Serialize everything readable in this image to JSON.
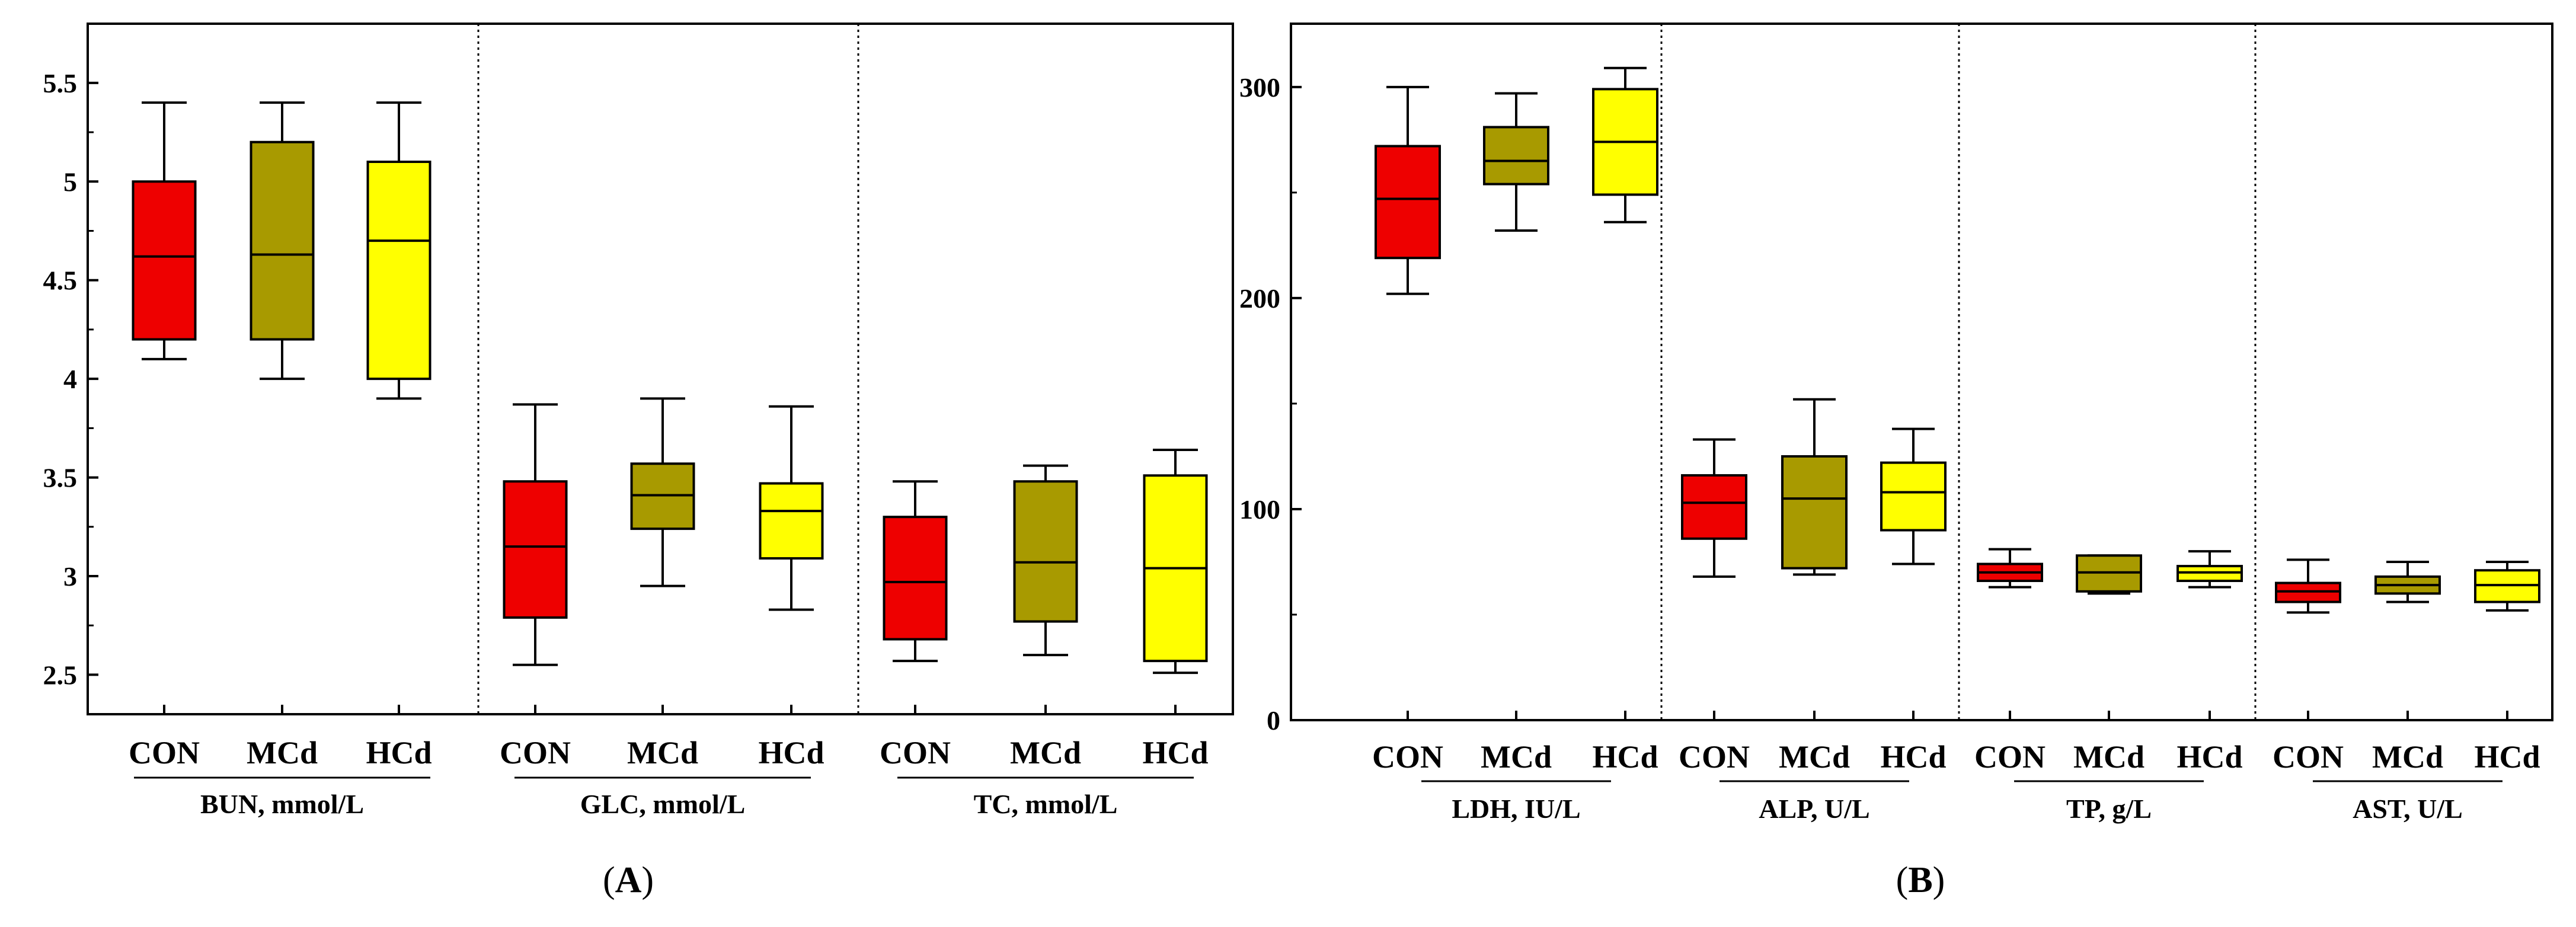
{
  "figure": {
    "panel_labels": [
      "A",
      "B"
    ]
  },
  "colors": {
    "CON": "#ee0000",
    "MCd": "#a89a00",
    "HCd": "#ffff00"
  },
  "chart_data": [
    {
      "type": "boxplot",
      "panel": "A",
      "ylim": [
        2.3,
        5.8
      ],
      "yticks": [
        2.5,
        3,
        3.5,
        4,
        4.5,
        5,
        5.5
      ],
      "ytick_labels": [
        "2.5",
        "3",
        "3.5",
        "4",
        "4.5",
        "5",
        "5.5"
      ],
      "groups": [
        {
          "param": "BUN, mmol/L",
          "boxes": [
            {
              "label": "CON",
              "min": 4.1,
              "q1": 4.2,
              "median": 4.62,
              "q3": 5.0,
              "max": 5.4
            },
            {
              "label": "MCd",
              "min": 4.0,
              "q1": 4.2,
              "median": 4.63,
              "q3": 5.2,
              "max": 5.4
            },
            {
              "label": "HCd",
              "min": 3.9,
              "q1": 4.0,
              "median": 4.7,
              "q3": 5.1,
              "max": 5.4
            }
          ]
        },
        {
          "param": "GLC, mmol/L",
          "boxes": [
            {
              "label": "CON",
              "min": 2.55,
              "q1": 2.79,
              "median": 3.15,
              "q3": 3.48,
              "max": 3.87
            },
            {
              "label": "MCd",
              "min": 2.95,
              "q1": 3.24,
              "median": 3.41,
              "q3": 3.57,
              "max": 3.9
            },
            {
              "label": "HCd",
              "min": 2.83,
              "q1": 3.09,
              "median": 3.33,
              "q3": 3.47,
              "max": 3.86
            }
          ]
        },
        {
          "param": "TC, mmol/L",
          "boxes": [
            {
              "label": "CON",
              "min": 2.57,
              "q1": 2.68,
              "median": 2.97,
              "q3": 3.3,
              "max": 3.48
            },
            {
              "label": "MCd",
              "min": 2.6,
              "q1": 2.77,
              "median": 3.07,
              "q3": 3.48,
              "max": 3.56
            },
            {
              "label": "HCd",
              "min": 2.51,
              "q1": 2.57,
              "median": 3.04,
              "q3": 3.51,
              "max": 3.64
            }
          ]
        }
      ]
    },
    {
      "type": "boxplot",
      "panel": "B",
      "ylim": [
        0,
        330
      ],
      "yticks": [
        0,
        100,
        200,
        300
      ],
      "ytick_labels": [
        "0",
        "100",
        "200",
        "300"
      ],
      "groups": [
        {
          "param": "LDH, IU/L",
          "boxes": [
            {
              "label": "CON",
              "min": 202,
              "q1": 219,
              "median": 247,
              "q3": 272,
              "max": 300
            },
            {
              "label": "MCd",
              "min": 232,
              "q1": 254,
              "median": 265,
              "q3": 281,
              "max": 297
            },
            {
              "label": "HCd",
              "min": 236,
              "q1": 249,
              "median": 274,
              "q3": 299,
              "max": 309
            }
          ]
        },
        {
          "param": "ALP, U/L",
          "boxes": [
            {
              "label": "CON",
              "min": 68,
              "q1": 86,
              "median": 103,
              "q3": 116,
              "max": 133
            },
            {
              "label": "MCd",
              "min": 69,
              "q1": 72,
              "median": 105,
              "q3": 125,
              "max": 152
            },
            {
              "label": "HCd",
              "min": 74,
              "q1": 90,
              "median": 108,
              "q3": 122,
              "max": 138
            }
          ]
        },
        {
          "param": "TP, g/L",
          "boxes": [
            {
              "label": "CON",
              "min": 63,
              "q1": 66,
              "median": 70,
              "q3": 74,
              "max": 81
            },
            {
              "label": "MCd",
              "min": 60,
              "q1": 61,
              "median": 70,
              "q3": 78,
              "max": 78
            },
            {
              "label": "HCd",
              "min": 63,
              "q1": 66,
              "median": 70,
              "q3": 73,
              "max": 80
            }
          ]
        },
        {
          "param": "AST, U/L",
          "boxes": [
            {
              "label": "CON",
              "min": 51,
              "q1": 56,
              "median": 61,
              "q3": 65,
              "max": 76
            },
            {
              "label": "MCd",
              "min": 56,
              "q1": 60,
              "median": 64,
              "q3": 68,
              "max": 75
            },
            {
              "label": "HCd",
              "min": 52,
              "q1": 56,
              "median": 64,
              "q3": 71,
              "max": 75
            }
          ]
        }
      ]
    }
  ]
}
